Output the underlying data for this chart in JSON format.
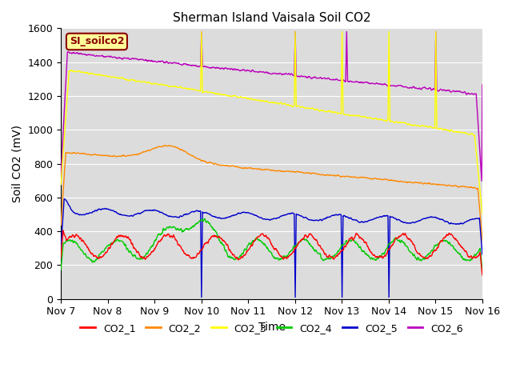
{
  "title": "Sherman Island Vaisala Soil CO2",
  "ylabel": "Soil CO2 (mV)",
  "xlabel": "Time",
  "legend_label": "SI_soilco2",
  "ylim": [
    0,
    1600
  ],
  "yticks": [
    0,
    200,
    400,
    600,
    800,
    1000,
    1200,
    1400,
    1600
  ],
  "xtick_labels": [
    "Nov 7",
    "Nov 8",
    "Nov 9",
    "Nov 10",
    "Nov 11",
    "Nov 12",
    "Nov 13",
    "Nov 14",
    "Nov 15",
    "Nov 16"
  ],
  "colors": {
    "CO2_1": "#ff0000",
    "CO2_2": "#ff8800",
    "CO2_3": "#ffff00",
    "CO2_4": "#00cc00",
    "CO2_5": "#0000cc",
    "CO2_6": "#bb00bb"
  },
  "bg_color": "#dcdcdc",
  "grid_color": "#ffffff"
}
